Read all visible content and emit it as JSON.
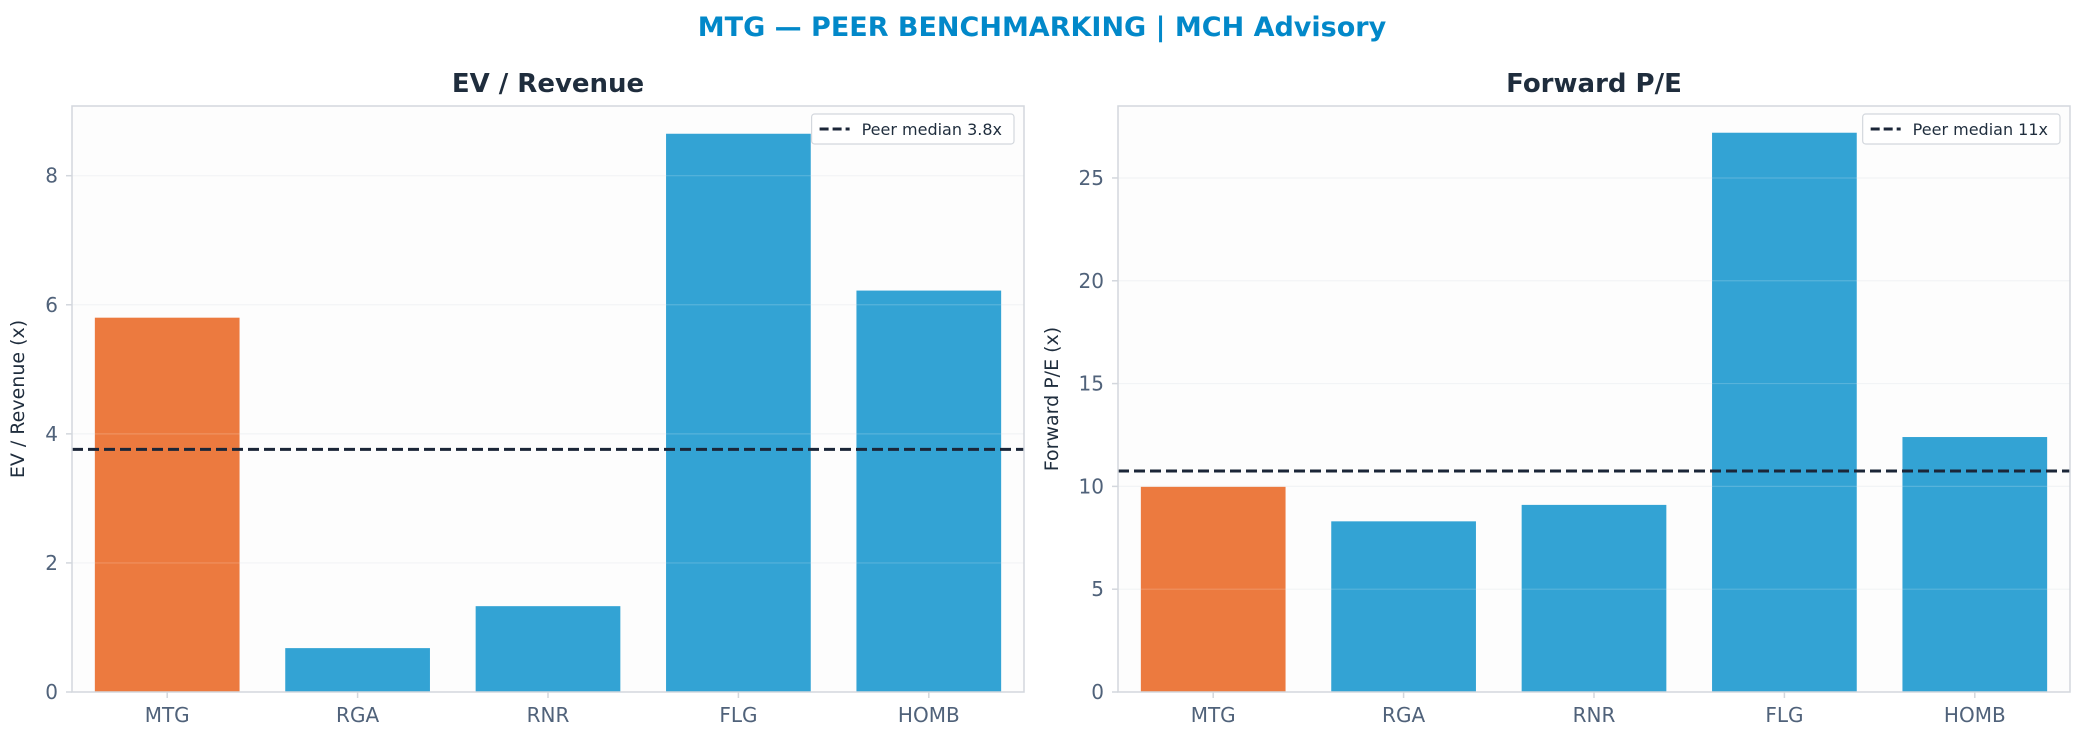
{
  "title": "MTG — PEER BENCHMARKING | MCH Advisory",
  "colors": {
    "title": "#0288c9",
    "highlight": "#ec7a3f",
    "peer": "#33a3d4",
    "median_line": "#1b2638",
    "panel_title": "#1f2d3d",
    "tick_text": "#50627a",
    "axis_border": "#d3d7dd",
    "grid": "#f0f2f4",
    "panel_bg": "#fdfdfd"
  },
  "chart_data": [
    {
      "type": "bar",
      "title": "EV / Revenue",
      "xlabel": "",
      "ylabel": "EV / Revenue (x)",
      "categories": [
        "MTG",
        "RGA",
        "RNR",
        "FLG",
        "HOMB"
      ],
      "values": [
        5.8,
        0.68,
        1.33,
        8.65,
        6.22
      ],
      "highlight_index": 0,
      "ylim": [
        0,
        9.08
      ],
      "yticks": [
        0,
        2,
        4,
        6,
        8
      ],
      "grid": true,
      "reference_line": {
        "value": 3.76,
        "label": "Peer median 3.8x",
        "style": "dashed"
      },
      "legend_position": "top-right"
    },
    {
      "type": "bar",
      "title": "Forward P/E",
      "xlabel": "",
      "ylabel": "Forward P/E (x)",
      "categories": [
        "MTG",
        "RGA",
        "RNR",
        "FLG",
        "HOMB"
      ],
      "values": [
        9.98,
        8.3,
        9.1,
        27.2,
        12.4
      ],
      "highlight_index": 0,
      "ylim": [
        0,
        28.5
      ],
      "yticks": [
        0,
        5,
        10,
        15,
        20,
        25
      ],
      "grid": true,
      "reference_line": {
        "value": 10.75,
        "label": "Peer median 11x",
        "style": "dashed"
      },
      "legend_position": "top-right"
    }
  ]
}
